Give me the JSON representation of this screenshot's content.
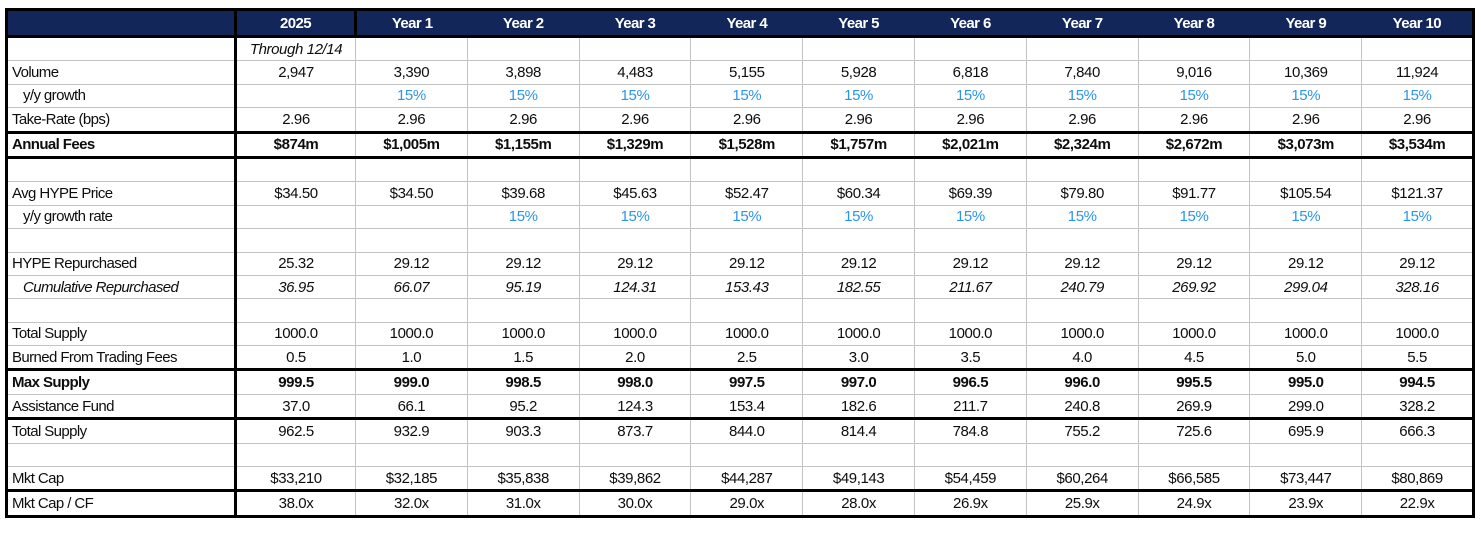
{
  "colors": {
    "header_bg": "#12265A",
    "header_text": "#FFFFFF",
    "growth_blue": "#2B95E9",
    "grid_line": "#C3C3C3",
    "thick_border": "#000000"
  },
  "table": {
    "columns": [
      "",
      "2025",
      "Year 1",
      "Year 2",
      "Year 3",
      "Year 4",
      "Year 5",
      "Year 6",
      "Year 7",
      "Year 8",
      "Year 9",
      "Year 10"
    ],
    "rows": [
      {
        "label": "",
        "italic_cells": true,
        "cells": [
          "Through 12/14",
          "",
          "",
          "",
          "",
          "",
          "",
          "",
          "",
          "",
          ""
        ]
      },
      {
        "label": "Volume",
        "cells": [
          "2,947",
          "3,390",
          "3,898",
          "4,483",
          "5,155",
          "5,928",
          "6,818",
          "7,840",
          "9,016",
          "10,369",
          "11,924"
        ]
      },
      {
        "label": "y/y growth",
        "indent": true,
        "blue_cells": true,
        "cells": [
          "",
          "15%",
          "15%",
          "15%",
          "15%",
          "15%",
          "15%",
          "15%",
          "15%",
          "15%",
          "15%"
        ]
      },
      {
        "label": "Take-Rate (bps)",
        "thick_bottom": true,
        "cells": [
          "2.96",
          "2.96",
          "2.96",
          "2.96",
          "2.96",
          "2.96",
          "2.96",
          "2.96",
          "2.96",
          "2.96",
          "2.96"
        ]
      },
      {
        "label": "Annual Fees",
        "bold": true,
        "thick_bottom": true,
        "cells": [
          "$874m",
          "$1,005m",
          "$1,155m",
          "$1,329m",
          "$1,528m",
          "$1,757m",
          "$2,021m",
          "$2,324m",
          "$2,672m",
          "$3,073m",
          "$3,534m"
        ]
      },
      {
        "label": "",
        "cells": [
          "",
          "",
          "",
          "",
          "",
          "",
          "",
          "",
          "",
          "",
          ""
        ]
      },
      {
        "label": "Avg HYPE Price",
        "cells": [
          "$34.50",
          "$34.50",
          "$39.68",
          "$45.63",
          "$52.47",
          "$60.34",
          "$69.39",
          "$79.80",
          "$91.77",
          "$105.54",
          "$121.37"
        ]
      },
      {
        "label": "y/y growth rate",
        "indent": true,
        "blue_cells": true,
        "cells": [
          "",
          "",
          "15%",
          "15%",
          "15%",
          "15%",
          "15%",
          "15%",
          "15%",
          "15%",
          "15%"
        ]
      },
      {
        "label": "",
        "cells": [
          "",
          "",
          "",
          "",
          "",
          "",
          "",
          "",
          "",
          "",
          ""
        ]
      },
      {
        "label": "HYPE Repurchased",
        "cells": [
          "25.32",
          "29.12",
          "29.12",
          "29.12",
          "29.12",
          "29.12",
          "29.12",
          "29.12",
          "29.12",
          "29.12",
          "29.12"
        ]
      },
      {
        "label": "Cumulative Repurchased",
        "indent": true,
        "italic_label": true,
        "italic_cells": true,
        "cells": [
          "36.95",
          "66.07",
          "95.19",
          "124.31",
          "153.43",
          "182.55",
          "211.67",
          "240.79",
          "269.92",
          "299.04",
          "328.16"
        ]
      },
      {
        "label": "",
        "cells": [
          "",
          "",
          "",
          "",
          "",
          "",
          "",
          "",
          "",
          "",
          ""
        ]
      },
      {
        "label": "Total Supply",
        "cells": [
          "1000.0",
          "1000.0",
          "1000.0",
          "1000.0",
          "1000.0",
          "1000.0",
          "1000.0",
          "1000.0",
          "1000.0",
          "1000.0",
          "1000.0"
        ]
      },
      {
        "label": "Burned From Trading Fees",
        "thick_bottom": true,
        "cells": [
          "0.5",
          "1.0",
          "1.5",
          "2.0",
          "2.5",
          "3.0",
          "3.5",
          "4.0",
          "4.5",
          "5.0",
          "5.5"
        ]
      },
      {
        "label": "Max Supply",
        "bold": true,
        "cells": [
          "999.5",
          "999.0",
          "998.5",
          "998.0",
          "997.5",
          "997.0",
          "996.5",
          "996.0",
          "995.5",
          "995.0",
          "994.5"
        ]
      },
      {
        "label": "Assistance Fund",
        "thick_bottom": true,
        "cells": [
          "37.0",
          "66.1",
          "95.2",
          "124.3",
          "153.4",
          "182.6",
          "211.7",
          "240.8",
          "269.9",
          "299.0",
          "328.2"
        ]
      },
      {
        "label": "Total Supply",
        "cells": [
          "962.5",
          "932.9",
          "903.3",
          "873.7",
          "844.0",
          "814.4",
          "784.8",
          "755.2",
          "725.6",
          "695.9",
          "666.3"
        ]
      },
      {
        "label": "",
        "cells": [
          "",
          "",
          "",
          "",
          "",
          "",
          "",
          "",
          "",
          "",
          ""
        ]
      },
      {
        "label": "Mkt Cap",
        "thick_bottom": true,
        "cells": [
          "$33,210",
          "$32,185",
          "$35,838",
          "$39,862",
          "$44,287",
          "$49,143",
          "$54,459",
          "$60,264",
          "$66,585",
          "$73,447",
          "$80,869"
        ]
      },
      {
        "label": "Mkt Cap / CF",
        "cells": [
          "38.0x",
          "32.0x",
          "31.0x",
          "30.0x",
          "29.0x",
          "28.0x",
          "26.9x",
          "25.9x",
          "24.9x",
          "23.9x",
          "22.9x"
        ]
      }
    ]
  }
}
